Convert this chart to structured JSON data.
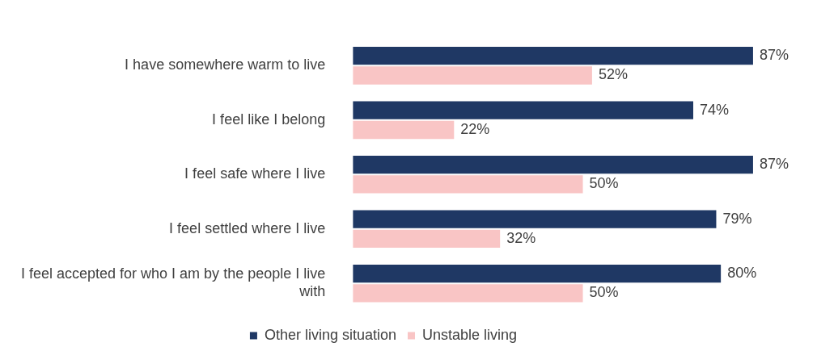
{
  "chart_data": {
    "type": "bar",
    "orientation": "horizontal",
    "categories": [
      "I have somewhere warm to live",
      "I feel like I belong",
      "I feel safe where I live",
      "I feel settled where I live",
      "I feel accepted for who I am by the people I live with"
    ],
    "series": [
      {
        "name": "Other living situation",
        "color": "#1f3864",
        "values": [
          87,
          74,
          87,
          79,
          80
        ],
        "value_labels": [
          "87%",
          "74%",
          "87%",
          "79%",
          "80%"
        ]
      },
      {
        "name": "Unstable living",
        "color": "#f9c5c5",
        "values": [
          52,
          22,
          50,
          32,
          50
        ],
        "value_labels": [
          "52%",
          "22%",
          "50%",
          "32%",
          "50%"
        ]
      }
    ],
    "tick_labels": "y",
    "grid": false,
    "legend": "bottom"
  }
}
